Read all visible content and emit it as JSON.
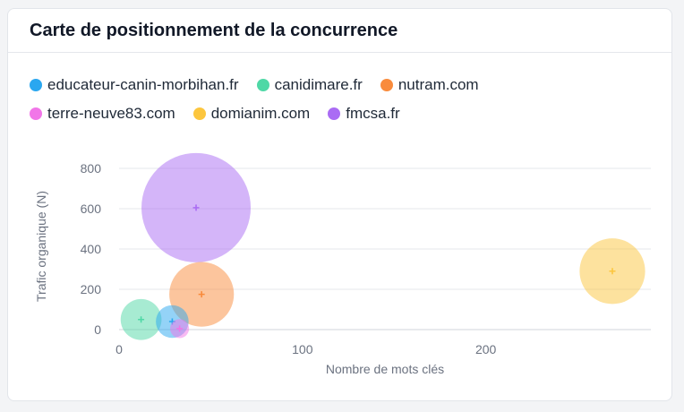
{
  "card": {
    "title": "Carte de positionnement de la concurrence"
  },
  "chart_data": {
    "type": "scatter",
    "title": "Carte de positionnement de la concurrence",
    "xlabel": "Nombre de mots clés",
    "ylabel": "Trafic organique (N)",
    "xlim": [
      0,
      290
    ],
    "ylim": [
      0,
      800
    ],
    "x_ticks": [
      "0",
      "100",
      "200"
    ],
    "y_ticks": [
      "0",
      "200",
      "400",
      "600",
      "800"
    ],
    "grid": true,
    "legend_position": "top",
    "series": [
      {
        "name": "educateur-canin-morbihan.fr",
        "color": "#2aa7f0",
        "x": 29,
        "y": 40,
        "size": 18
      },
      {
        "name": "canidimare.fr",
        "color": "#4fd8a6",
        "x": 12,
        "y": 50,
        "size": 28
      },
      {
        "name": "nutram.com",
        "color": "#f98b3c",
        "x": 45,
        "y": 175,
        "size": 70
      },
      {
        "name": "terre-neuve83.com",
        "color": "#f176e8",
        "x": 33,
        "y": 5,
        "size": 6
      },
      {
        "name": "domianim.com",
        "color": "#fcc63e",
        "x": 269,
        "y": 290,
        "size": 72
      },
      {
        "name": "fmcsa.fr",
        "color": "#aa6cf4",
        "x": 42,
        "y": 605,
        "size": 200
      }
    ]
  }
}
